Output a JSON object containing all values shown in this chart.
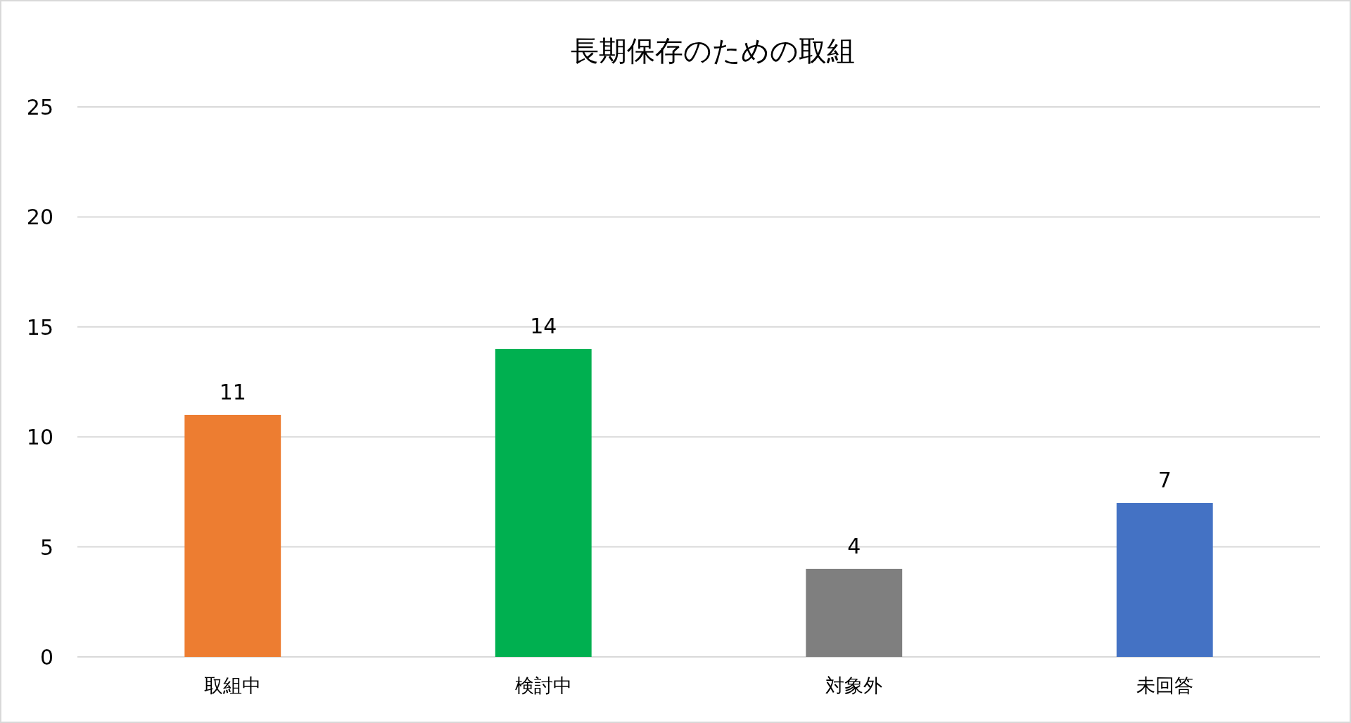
{
  "chart_data": {
    "type": "bar",
    "title": "長期保存のための取組",
    "categories": [
      "取組中",
      "検討中",
      "対象外",
      "未回答"
    ],
    "values": [
      11,
      14,
      4,
      7
    ],
    "colors": [
      "#ed7d31",
      "#00b050",
      "#7f7f7f",
      "#4472c4"
    ],
    "ylim": [
      0,
      25
    ],
    "yticks": [
      0,
      5,
      10,
      15,
      20,
      25
    ],
    "grid": "y",
    "data_labels": true
  }
}
